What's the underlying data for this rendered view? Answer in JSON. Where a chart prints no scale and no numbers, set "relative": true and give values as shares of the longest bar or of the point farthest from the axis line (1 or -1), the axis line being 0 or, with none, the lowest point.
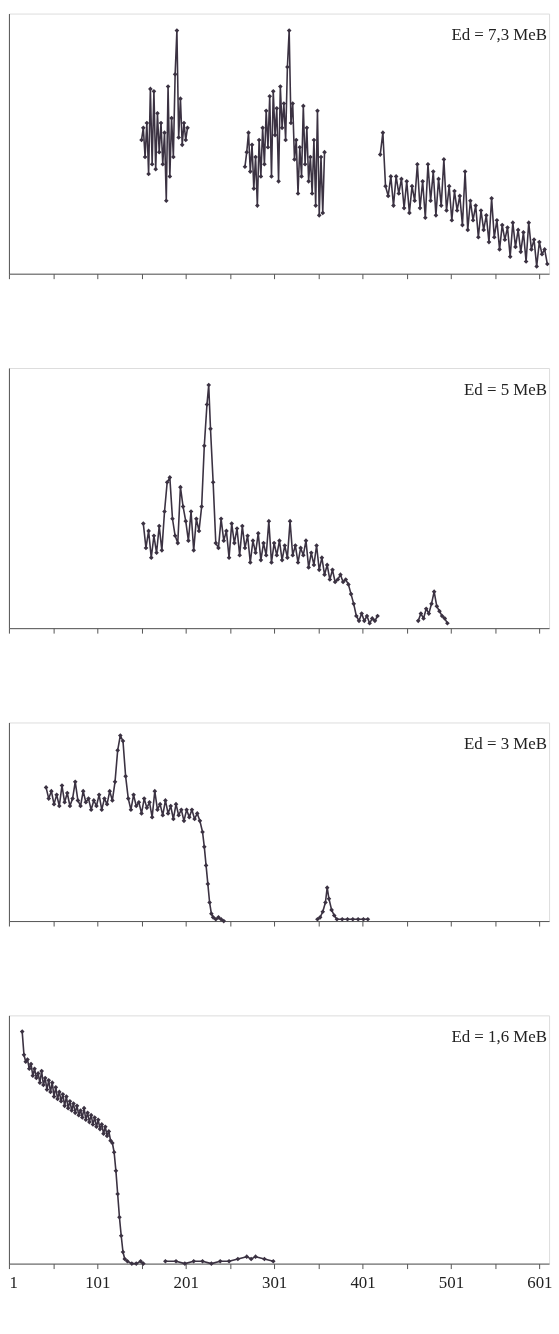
{
  "chart_data": [
    {
      "type": "line",
      "relative": true,
      "marker": "diamond",
      "line_style": "solid",
      "grid": false,
      "tick_labels": false,
      "annotations": [
        "Ed = 7,3 MeB"
      ],
      "xlim": [
        1,
        612
      ],
      "xticks": [
        1,
        {
          "value": 51,
          "label": null
        },
        101,
        {
          "value": 151,
          "label": null
        },
        201,
        {
          "value": 251,
          "label": null
        },
        301,
        {
          "value": 351,
          "label": null
        },
        401,
        {
          "value": 451,
          "label": null
        },
        501,
        {
          "value": 551,
          "label": null
        },
        601
      ],
      "series": [
        {
          "color": "#3b3242",
          "x": [
            151,
            153,
            155,
            157,
            159,
            161,
            163,
            165,
            167,
            169,
            171,
            173,
            175,
            177,
            179,
            181,
            183,
            185,
            187,
            189,
            191,
            193,
            195,
            197,
            199,
            201,
            203,
            230,
            268,
            270,
            272,
            274,
            276,
            278,
            280,
            282,
            284,
            286,
            288,
            290,
            292,
            294,
            296,
            298,
            300,
            302,
            304,
            306,
            308,
            310,
            312,
            314,
            316,
            318,
            320,
            322,
            324,
            326,
            328,
            330,
            332,
            334,
            336,
            338,
            340,
            342,
            344,
            346,
            348,
            350,
            352,
            354,
            356,
            358,
            390,
            421,
            424,
            427,
            430,
            433,
            436,
            439,
            442,
            445,
            448,
            451,
            454,
            457,
            460,
            463,
            466,
            469,
            472,
            475,
            478,
            481,
            484,
            487,
            490,
            493,
            496,
            499,
            502,
            505,
            508,
            511,
            514,
            517,
            520,
            523,
            526,
            529,
            532,
            535,
            538,
            541,
            544,
            547,
            550,
            553,
            556,
            559,
            562,
            565,
            568,
            571,
            574,
            577,
            580,
            583,
            586,
            589,
            592,
            595,
            598,
            601,
            604,
            607,
            610
          ],
          "values": [
            0.55,
            0.6,
            0.48,
            0.62,
            0.41,
            0.76,
            0.45,
            0.75,
            0.43,
            0.66,
            0.5,
            0.62,
            0.45,
            0.58,
            0.3,
            0.77,
            0.4,
            0.64,
            0.48,
            0.82,
            1.0,
            0.56,
            0.72,
            0.53,
            0.62,
            0.55,
            0.6,
            null,
            0.44,
            0.5,
            0.58,
            0.42,
            0.53,
            0.35,
            0.48,
            0.28,
            0.55,
            0.4,
            0.6,
            0.45,
            0.67,
            0.52,
            0.73,
            0.4,
            0.75,
            0.57,
            0.68,
            0.38,
            0.77,
            0.6,
            0.7,
            0.55,
            0.85,
            1.0,
            0.62,
            0.7,
            0.47,
            0.55,
            0.33,
            0.52,
            0.4,
            0.69,
            0.45,
            0.6,
            0.38,
            0.48,
            0.33,
            0.55,
            0.28,
            0.67,
            0.24,
            0.48,
            0.25,
            0.5,
            null,
            0.49,
            0.58,
            0.36,
            0.32,
            0.4,
            0.28,
            0.4,
            0.33,
            0.39,
            0.27,
            0.38,
            0.25,
            0.36,
            0.3,
            0.45,
            0.27,
            0.38,
            0.23,
            0.45,
            0.3,
            0.42,
            0.24,
            0.39,
            0.28,
            0.47,
            0.26,
            0.36,
            0.22,
            0.34,
            0.26,
            0.32,
            0.2,
            0.42,
            0.18,
            0.3,
            0.22,
            0.28,
            0.15,
            0.26,
            0.18,
            0.24,
            0.13,
            0.31,
            0.15,
            0.22,
            0.1,
            0.2,
            0.14,
            0.19,
            0.07,
            0.21,
            0.11,
            0.18,
            0.09,
            0.17,
            0.05,
            0.21,
            0.1,
            0.14,
            0.03,
            0.13,
            0.08,
            0.1,
            0.04
          ]
        }
      ]
    },
    {
      "type": "line",
      "relative": true,
      "marker": "diamond",
      "line_style": "solid",
      "grid": false,
      "tick_labels": false,
      "annotations": [
        "Ed = 5 MeB"
      ],
      "xlim": [
        1,
        612
      ],
      "xticks": [
        1,
        {
          "value": 51,
          "label": null
        },
        101,
        {
          "value": 151,
          "label": null
        },
        201,
        {
          "value": 251,
          "label": null
        },
        301,
        {
          "value": 351,
          "label": null
        },
        401,
        {
          "value": 451,
          "label": null
        },
        501,
        {
          "value": 551,
          "label": null
        },
        601
      ],
      "series": [
        {
          "color": "#3b3242",
          "x": [
            153,
            156,
            159,
            162,
            165,
            168,
            171,
            174,
            177,
            180,
            183,
            186,
            189,
            192,
            195,
            198,
            201,
            204,
            207,
            210,
            213,
            216,
            219,
            222,
            225,
            227,
            229,
            232,
            235,
            238,
            241,
            244,
            247,
            250,
            253,
            256,
            259,
            262,
            265,
            268,
            271,
            274,
            277,
            280,
            283,
            286,
            289,
            292,
            295,
            298,
            301,
            304,
            307,
            310,
            313,
            316,
            319,
            322,
            325,
            328,
            331,
            334,
            337,
            340,
            343,
            346,
            349,
            352,
            355,
            358,
            361,
            364,
            367,
            370,
            373,
            376,
            379,
            382,
            385,
            388,
            391,
            394,
            397,
            400,
            403,
            406,
            409,
            412,
            415,
            418,
            440,
            464,
            467,
            470,
            473,
            476,
            479,
            482,
            485,
            488,
            491,
            494,
            497
          ],
          "values": [
            0.43,
            0.33,
            0.4,
            0.29,
            0.38,
            0.31,
            0.42,
            0.32,
            0.48,
            0.6,
            0.62,
            0.45,
            0.38,
            0.35,
            0.58,
            0.5,
            0.44,
            0.36,
            0.48,
            0.32,
            0.45,
            0.4,
            0.5,
            0.75,
            0.92,
            1.0,
            0.82,
            0.6,
            0.35,
            0.33,
            0.45,
            0.36,
            0.4,
            0.29,
            0.43,
            0.35,
            0.41,
            0.3,
            0.42,
            0.33,
            0.38,
            0.27,
            0.36,
            0.31,
            0.39,
            0.28,
            0.35,
            0.3,
            0.44,
            0.27,
            0.35,
            0.3,
            0.36,
            0.28,
            0.34,
            0.29,
            0.44,
            0.3,
            0.34,
            0.27,
            0.33,
            0.3,
            0.36,
            0.25,
            0.31,
            0.26,
            0.34,
            0.24,
            0.29,
            0.22,
            0.26,
            0.2,
            0.24,
            0.19,
            0.2,
            0.22,
            0.19,
            0.2,
            0.18,
            0.14,
            0.1,
            0.05,
            0.03,
            0.06,
            0.03,
            0.05,
            0.02,
            0.04,
            0.03,
            0.05,
            null,
            0.03,
            0.06,
            0.04,
            0.08,
            0.06,
            0.1,
            0.15,
            0.09,
            0.07,
            0.05,
            0.04,
            0.02
          ]
        }
      ]
    },
    {
      "type": "line",
      "relative": true,
      "marker": "diamond",
      "line_style": "solid",
      "grid": false,
      "tick_labels": false,
      "annotations": [
        "Ed = 3 MeB"
      ],
      "xlim": [
        1,
        612
      ],
      "xticks": [
        1,
        {
          "value": 51,
          "label": null
        },
        101,
        {
          "value": 151,
          "label": null
        },
        201,
        {
          "value": 251,
          "label": null
        },
        301,
        {
          "value": 351,
          "label": null
        },
        401,
        {
          "value": 451,
          "label": null
        },
        501,
        {
          "value": 551,
          "label": null
        },
        601
      ],
      "series": [
        {
          "color": "#3b3242",
          "x": [
            43,
            46,
            49,
            52,
            55,
            58,
            61,
            64,
            67,
            70,
            73,
            76,
            79,
            82,
            85,
            88,
            91,
            94,
            97,
            100,
            103,
            106,
            109,
            112,
            115,
            118,
            121,
            124,
            127,
            130,
            133,
            136,
            139,
            142,
            145,
            148,
            151,
            154,
            157,
            160,
            163,
            166,
            169,
            172,
            175,
            178,
            181,
            184,
            187,
            190,
            193,
            196,
            199,
            202,
            205,
            208,
            211,
            214,
            217,
            220,
            222,
            224,
            226,
            228,
            230,
            232,
            235,
            238,
            241,
            244,
            300,
            350,
            353,
            356,
            359,
            361,
            363,
            366,
            369,
            372,
            378,
            384,
            390,
            396,
            402,
            407
          ],
          "values": [
            0.72,
            0.66,
            0.7,
            0.63,
            0.68,
            0.62,
            0.73,
            0.64,
            0.69,
            0.62,
            0.66,
            0.75,
            0.65,
            0.62,
            0.7,
            0.64,
            0.66,
            0.6,
            0.65,
            0.62,
            0.68,
            0.6,
            0.66,
            0.63,
            0.7,
            0.65,
            0.75,
            0.92,
            1.0,
            0.97,
            0.78,
            0.66,
            0.6,
            0.68,
            0.62,
            0.64,
            0.58,
            0.66,
            0.61,
            0.64,
            0.56,
            0.7,
            0.6,
            0.63,
            0.57,
            0.65,
            0.58,
            0.62,
            0.55,
            0.63,
            0.57,
            0.6,
            0.54,
            0.6,
            0.56,
            0.6,
            0.55,
            0.58,
            0.54,
            0.48,
            0.4,
            0.3,
            0.2,
            0.1,
            0.04,
            0.02,
            0.01,
            0.02,
            0.01,
            0.0,
            null,
            0.01,
            0.02,
            0.05,
            0.1,
            0.18,
            0.12,
            0.06,
            0.03,
            0.01,
            0.01,
            0.01,
            0.01,
            0.01,
            0.01,
            0.01
          ]
        }
      ]
    },
    {
      "type": "line",
      "relative": true,
      "marker": "diamond",
      "line_style": "solid",
      "grid": false,
      "tick_labels": "x",
      "annotations": [
        "Ed = 1,6 MeB"
      ],
      "xlim": [
        1,
        612
      ],
      "xticks": [
        1,
        {
          "value": 51,
          "label": null
        },
        101,
        {
          "value": 151,
          "label": null
        },
        201,
        {
          "value": 251,
          "label": null
        },
        301,
        {
          "value": 351,
          "label": null
        },
        401,
        {
          "value": 451,
          "label": null
        },
        501,
        {
          "value": 551,
          "label": null
        },
        601
      ],
      "series": [
        {
          "color": "#3b3242",
          "x": [
            16,
            18,
            20,
            22,
            24,
            26,
            28,
            30,
            32,
            34,
            36,
            38,
            40,
            42,
            44,
            46,
            48,
            50,
            52,
            54,
            56,
            58,
            60,
            62,
            64,
            66,
            68,
            70,
            72,
            74,
            76,
            78,
            80,
            82,
            84,
            86,
            88,
            90,
            92,
            94,
            96,
            98,
            100,
            102,
            104,
            106,
            108,
            110,
            112,
            114,
            116,
            118,
            120,
            122,
            124,
            126,
            128,
            130,
            132,
            135,
            140,
            145,
            150,
            153,
            165,
            178,
            190,
            200,
            210,
            220,
            230,
            240,
            250,
            260,
            270,
            275,
            280,
            290,
            300
          ],
          "values": [
            1.0,
            0.9,
            0.87,
            0.88,
            0.84,
            0.86,
            0.81,
            0.84,
            0.8,
            0.82,
            0.78,
            0.83,
            0.77,
            0.8,
            0.75,
            0.79,
            0.74,
            0.78,
            0.72,
            0.76,
            0.71,
            0.74,
            0.7,
            0.73,
            0.68,
            0.72,
            0.67,
            0.7,
            0.66,
            0.69,
            0.65,
            0.68,
            0.64,
            0.66,
            0.63,
            0.67,
            0.62,
            0.65,
            0.61,
            0.64,
            0.6,
            0.63,
            0.59,
            0.62,
            0.58,
            0.6,
            0.56,
            0.59,
            0.55,
            0.57,
            0.53,
            0.52,
            0.48,
            0.4,
            0.3,
            0.2,
            0.12,
            0.05,
            0.02,
            0.01,
            0.0,
            0.0,
            0.01,
            0.0,
            null,
            0.01,
            0.01,
            0.0,
            0.01,
            0.01,
            0.0,
            0.01,
            0.01,
            0.02,
            0.03,
            0.02,
            0.03,
            0.02,
            0.01
          ]
        }
      ]
    }
  ]
}
